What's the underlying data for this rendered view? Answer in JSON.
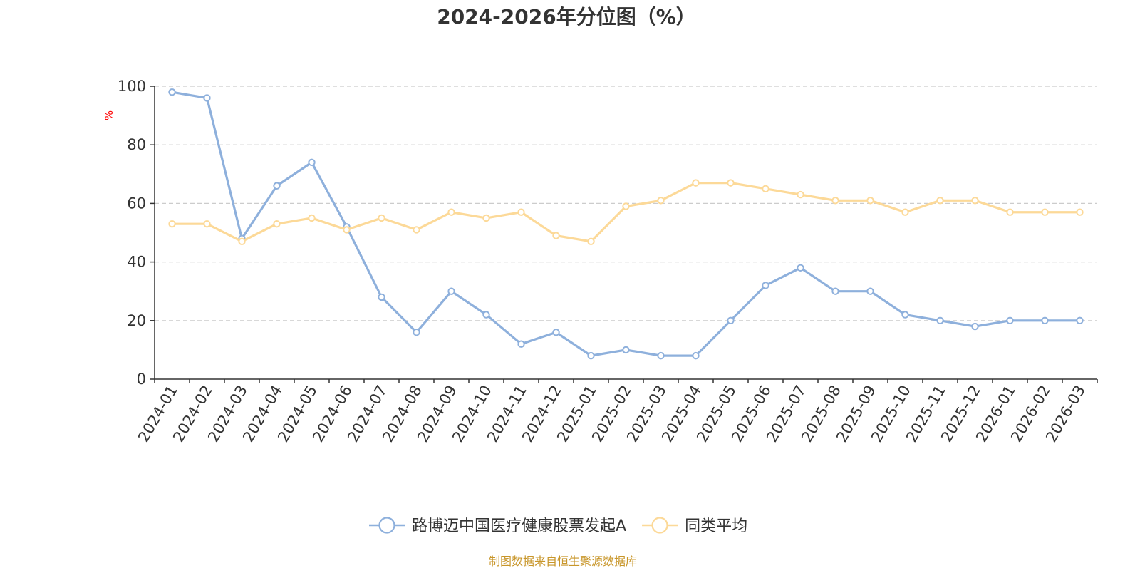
{
  "chart_data": {
    "type": "line",
    "title": "2024-2026年分位图（%）",
    "ylabel": "%",
    "xlabel": "",
    "ylim": [
      0,
      100
    ],
    "yticks": [
      0,
      20,
      40,
      60,
      80,
      100
    ],
    "grid": true,
    "legend_position": "bottom-center",
    "categories": [
      "2024-01",
      "2024-02",
      "2024-03",
      "2024-04",
      "2024-05",
      "2024-06",
      "2024-07",
      "2024-08",
      "2024-09",
      "2024-10",
      "2024-11",
      "2024-12",
      "2025-01",
      "2025-02",
      "2025-03",
      "2025-04",
      "2025-05",
      "2025-06",
      "2025-07",
      "2025-08",
      "2025-09",
      "2025-10",
      "2025-11",
      "2025-12",
      "2026-01",
      "2026-02",
      "2026-03"
    ],
    "series": [
      {
        "name": "路博迈中国医疗健康股票发起A",
        "color": "#8eb0dc",
        "values": [
          98,
          96,
          48,
          66,
          74,
          52,
          28,
          16,
          30,
          22,
          12,
          16,
          8,
          10,
          8,
          8,
          20,
          32,
          38,
          30,
          30,
          22,
          20,
          18,
          20,
          20,
          20
        ]
      },
      {
        "name": "同类平均",
        "color": "#fcd998",
        "values": [
          53,
          53,
          47,
          53,
          55,
          51,
          55,
          51,
          57,
          55,
          57,
          49,
          47,
          59,
          61,
          67,
          67,
          65,
          63,
          61,
          61,
          57,
          61,
          61,
          57,
          57,
          57
        ]
      }
    ]
  },
  "footer": {
    "source": "制图数据来自恒生聚源数据库"
  },
  "colors": {
    "axis": "#333333",
    "grid": "#cccccc",
    "ylabel": "#ff0000",
    "source": "#c8962a"
  }
}
